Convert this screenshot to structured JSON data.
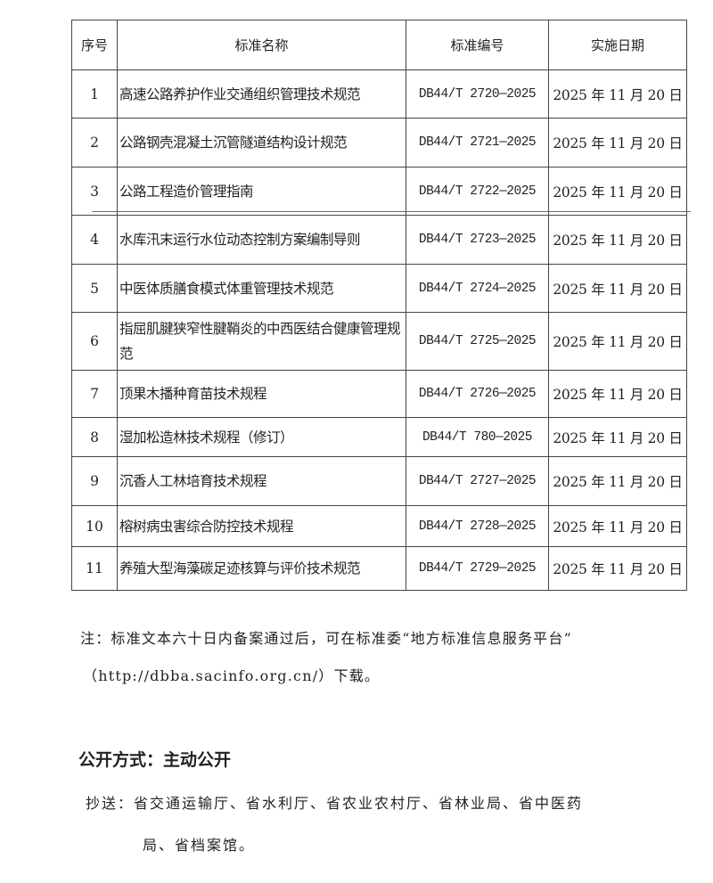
{
  "table": {
    "headers": [
      "序号",
      "标准名称",
      "标准编号",
      "实施日期"
    ],
    "rows": [
      {
        "no": "1",
        "name": "高速公路养护作业交通组织管理技术规范",
        "code": "DB44/T 2720—2025",
        "date": "2025 年 11 月 20 日"
      },
      {
        "no": "2",
        "name": "公路钢壳混凝土沉管隧道结构设计规范",
        "code": "DB44/T 2721—2025",
        "date": "2025 年 11 月 20 日"
      },
      {
        "no": "3",
        "name": "公路工程造价管理指南",
        "code": "DB44/T 2722—2025",
        "date": "2025 年 11 月 20 日"
      },
      {
        "no": "4",
        "name": "水库汛末运行水位动态控制方案编制导则",
        "code": "DB44/T 2723—2025",
        "date": "2025 年 11 月 20 日"
      },
      {
        "no": "5",
        "name": "中医体质膳食模式体重管理技术规范",
        "code": "DB44/T 2724—2025",
        "date": "2025 年 11 月 20 日"
      },
      {
        "no": "6",
        "name": "指屈肌腱狭窄性腱鞘炎的中西医结合健康管理规范",
        "code": "DB44/T 2725—2025",
        "date": "2025 年 11 月 20 日"
      },
      {
        "no": "7",
        "name": "顶果木播种育苗技术规程",
        "code": "DB44/T 2726—2025",
        "date": "2025 年 11 月 20 日"
      },
      {
        "no": "8",
        "name": "湿加松造林技术规程（修订）",
        "code": "DB44/T 780—2025",
        "date": "2025 年 11 月 20 日"
      },
      {
        "no": "9",
        "name": "沉香人工林培育技术规程",
        "code": "DB44/T 2727—2025",
        "date": "2025 年 11 月 20 日"
      },
      {
        "no": "10",
        "name": "榕树病虫害综合防控技术规程",
        "code": "DB44/T 2728—2025",
        "date": "2025 年 11 月 20 日"
      },
      {
        "no": "11",
        "name": "养殖大型海藻碳足迹核算与评价技术规范",
        "code": "DB44/T 2729—2025",
        "date": "2025 年 11 月 20 日"
      }
    ]
  },
  "note": {
    "line1": "注：标准文本六十日内备案通过后，可在标准委“地方标准信息服务平台”",
    "line2": "（http://dbba.sacinfo.org.cn/）下载。"
  },
  "disclosure": "公开方式：主动公开",
  "cc": {
    "line1": "抄送：省交通运输厅、省水利厅、省农业农村厅、省林业局、省中医药",
    "line2": "局、省档案馆。"
  },
  "colors": {
    "annotation_line": "#d04040"
  }
}
